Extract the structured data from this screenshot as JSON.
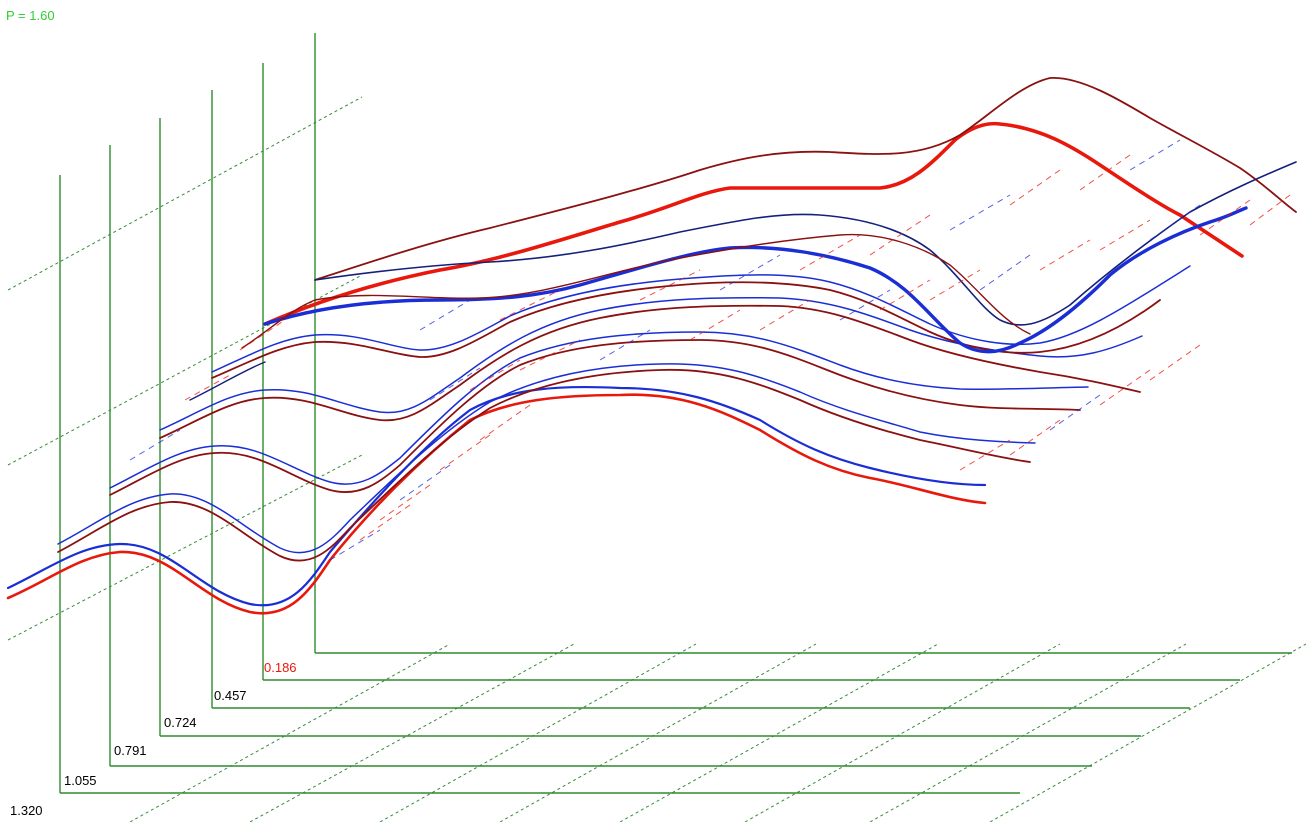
{
  "chart_data": {
    "type": "line",
    "title_label": "P = 1.60",
    "layer_labels": [
      "1.320",
      "1.055",
      "0.791",
      "0.724",
      "0.457",
      "0.186"
    ],
    "highlighted_layer_label": "0.186",
    "colors": {
      "axis": "#2e8b2e",
      "grid": "#3a8a3a",
      "title": "#33cc33",
      "red": "#e8180c",
      "darkred": "#8b1010",
      "blue": "#1a2ed6",
      "darkblue": "#15207a",
      "label": "#000000",
      "highlight_label": "#e8180c"
    }
  }
}
